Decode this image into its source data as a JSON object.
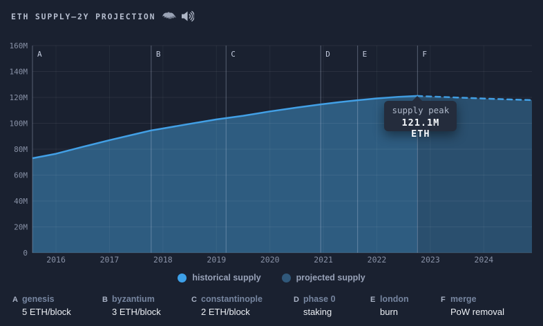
{
  "header": {
    "title": "ETH SUPPLY—2Y PROJECTION"
  },
  "tooltip": {
    "label": "supply peak",
    "value": "121.1M ETH"
  },
  "legend": [
    {
      "label": "historical supply",
      "color": "#3da0e8"
    },
    {
      "label": "projected supply",
      "color": "#30587a"
    }
  ],
  "footer": [
    {
      "key": "A",
      "name": "genesis",
      "desc": "5 ETH/block"
    },
    {
      "key": "B",
      "name": "byzantium",
      "desc": "3 ETH/block"
    },
    {
      "key": "C",
      "name": "constantinople",
      "desc": "2 ETH/block"
    },
    {
      "key": "D",
      "name": "phase 0",
      "desc": "staking"
    },
    {
      "key": "E",
      "name": "london",
      "desc": "burn"
    },
    {
      "key": "F",
      "name": "merge",
      "desc": "PoW removal"
    }
  ],
  "colors": {
    "background": "#1a2130",
    "accent_line": "#42a0e6",
    "historical_fill": "#2e5c80",
    "projected_fill": "#2a4f6e",
    "grid": "rgba(255,255,255,0.07)",
    "year_grid": "rgba(255,255,255,0.05)",
    "marker_line": "rgba(186,200,224,0.38)",
    "tick_label": "#8891a6",
    "marker_label": "#c3cbde",
    "tooltip_bg": "#242c3c"
  },
  "chart_data": {
    "type": "area",
    "title": "ETH SUPPLY—2Y PROJECTION",
    "units": "million ETH",
    "x_range": [
      2015.56,
      2024.9
    ],
    "y_range": [
      0,
      160
    ],
    "grid": true,
    "legend_position": "bottom",
    "x_ticks": [
      2016,
      2017,
      2018,
      2019,
      2020,
      2021,
      2022,
      2023,
      2024
    ],
    "y_ticks": [
      {
        "value": 0,
        "label": "0"
      },
      {
        "value": 20,
        "label": "20M"
      },
      {
        "value": 40,
        "label": "40M"
      },
      {
        "value": 60,
        "label": "60M"
      },
      {
        "value": 80,
        "label": "80M"
      },
      {
        "value": 100,
        "label": "100M"
      },
      {
        "value": 120,
        "label": "120M"
      },
      {
        "value": 140,
        "label": "140M"
      },
      {
        "value": 160,
        "label": "160M"
      }
    ],
    "series": [
      {
        "name": "historical supply",
        "style": "solid",
        "points": [
          [
            2015.56,
            73.0
          ],
          [
            2016.0,
            76.5
          ],
          [
            2016.5,
            81.8
          ],
          [
            2017.0,
            87.0
          ],
          [
            2017.5,
            91.8
          ],
          [
            2017.78,
            94.5
          ],
          [
            2018.0,
            96.0
          ],
          [
            2018.5,
            99.6
          ],
          [
            2019.0,
            103.0
          ],
          [
            2019.18,
            104.0
          ],
          [
            2019.5,
            105.8
          ],
          [
            2020.0,
            109.2
          ],
          [
            2020.5,
            112.1
          ],
          [
            2020.95,
            114.6
          ],
          [
            2021.3,
            116.3
          ],
          [
            2021.64,
            117.8
          ],
          [
            2022.0,
            119.2
          ],
          [
            2022.4,
            120.4
          ],
          [
            2022.76,
            121.1
          ]
        ]
      },
      {
        "name": "projected supply",
        "style": "dashed",
        "points": [
          [
            2022.76,
            121.1
          ],
          [
            2023.0,
            120.7
          ],
          [
            2023.5,
            119.9
          ],
          [
            2024.0,
            119.1
          ],
          [
            2024.5,
            118.4
          ],
          [
            2024.9,
            117.9
          ]
        ]
      }
    ],
    "markers": [
      {
        "key": "A",
        "x": 2015.56,
        "name": "genesis",
        "desc": "5 ETH/block"
      },
      {
        "key": "B",
        "x": 2017.78,
        "name": "byzantium",
        "desc": "3 ETH/block"
      },
      {
        "key": "C",
        "x": 2019.18,
        "name": "constantinople",
        "desc": "2 ETH/block"
      },
      {
        "key": "D",
        "x": 2020.95,
        "name": "phase 0",
        "desc": "staking"
      },
      {
        "key": "E",
        "x": 2021.64,
        "name": "london",
        "desc": "burn"
      },
      {
        "key": "F",
        "x": 2022.76,
        "name": "merge",
        "desc": "PoW removal"
      }
    ],
    "annotation": {
      "label": "supply peak",
      "value": "121.1M ETH",
      "x": 2022.76,
      "y": 121.1
    }
  }
}
